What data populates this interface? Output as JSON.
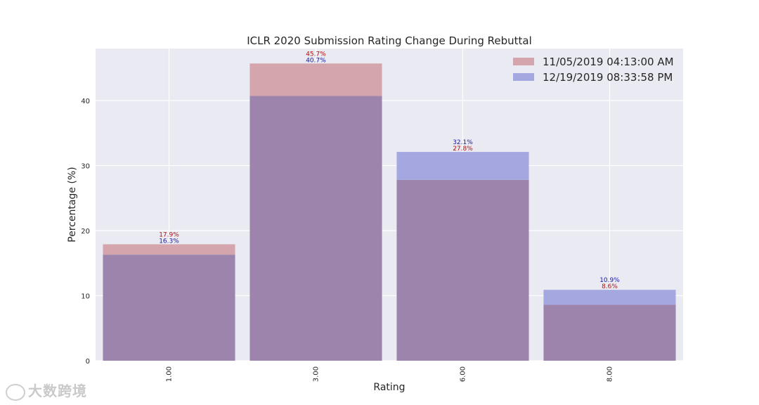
{
  "chart_data": {
    "type": "bar",
    "title": "ICLR 2020 Submission Rating Change During Rebuttal",
    "xlabel": "Rating",
    "ylabel": "Percentage (%)",
    "categories": [
      "1.00",
      "3.00",
      "6.00",
      "8.00"
    ],
    "ylim": [
      0,
      48
    ],
    "yticks": [
      0,
      10,
      20,
      30,
      40
    ],
    "grid": true,
    "legend_position": "top-right",
    "series": [
      {
        "name": "11/05/2019 04:13:00 AM",
        "values": [
          17.9,
          45.7,
          27.8,
          8.6
        ],
        "labels": [
          "17.9%",
          "45.7%",
          "27.8%",
          "8.6%"
        ],
        "color": "#d4a5ad",
        "label_color": "#b01010"
      },
      {
        "name": "12/19/2019 08:33:58 PM",
        "values": [
          16.3,
          40.7,
          32.1,
          10.9
        ],
        "labels": [
          "16.3%",
          "40.7%",
          "32.1%",
          "10.9%"
        ],
        "color": "#a5a8e0",
        "label_color": "#1a1aa0"
      }
    ],
    "overlap_color": "#9c84ac"
  },
  "watermark": "大数跨境"
}
